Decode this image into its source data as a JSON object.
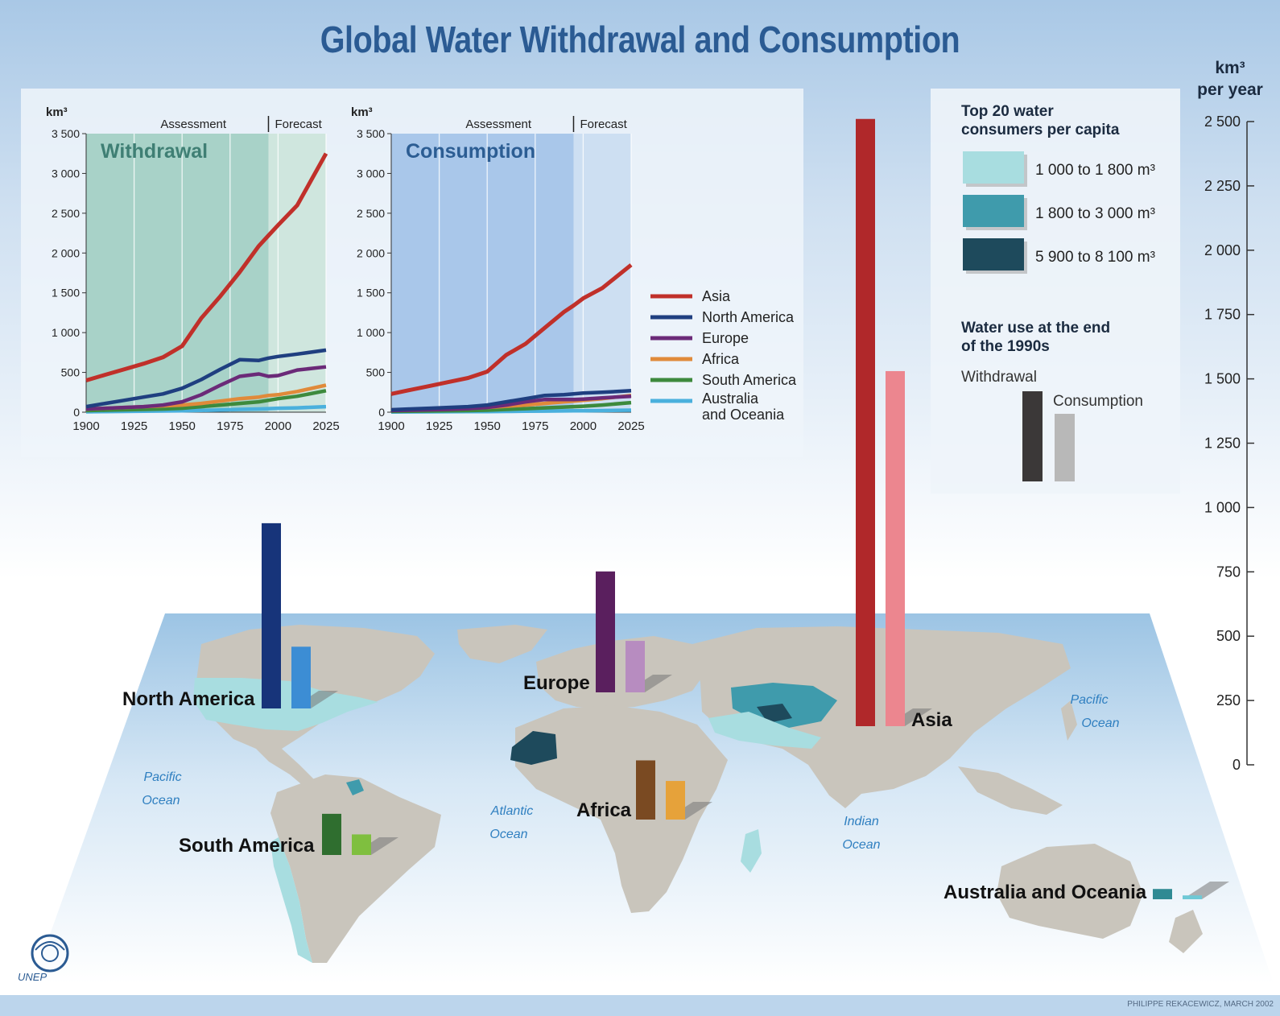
{
  "title": "Global Water Withdrawal and Consumption",
  "credit": "PHILIPPE REKACEWICZ, MARCH 2002",
  "logo_text": "UNEP",
  "colors": {
    "asia": "#c0302a",
    "north_america": "#1f3f80",
    "europe": "#6b2a78",
    "africa": "#e08a3a",
    "south_america": "#3d8a3d",
    "australia": "#4ab0dd",
    "land": "#c9c5bc",
    "tint_1": "#a8dde0",
    "tint_2": "#3f9bac",
    "tint_3": "#1e4a5c"
  },
  "line_charts": {
    "unit": "km³",
    "assessment_label": "Assessment",
    "forecast_label": "Forecast",
    "legend": [
      "Asia",
      "North America",
      "Europe",
      "Africa",
      "South America",
      "Australia and Oceania"
    ]
  },
  "chart_data": [
    {
      "type": "line",
      "title": "Withdrawal",
      "ylabel": "km³",
      "x": [
        1900,
        1910,
        1920,
        1930,
        1940,
        1950,
        1960,
        1970,
        1980,
        1990,
        1995,
        2000,
        2010,
        2025
      ],
      "ylim": [
        0,
        3500
      ],
      "xlim": [
        1900,
        2025
      ],
      "yticks": [
        "0",
        "500",
        "1 000",
        "1 500",
        "2 000",
        "2 500",
        "3 000",
        "3 500"
      ],
      "xticks": [
        "1900",
        "1925",
        "1950",
        "1975",
        "2000",
        "2025"
      ],
      "assessment_until": 1995,
      "series": [
        {
          "name": "Asia",
          "values": [
            400,
            470,
            540,
            610,
            690,
            830,
            1180,
            1460,
            1760,
            2090,
            2220,
            2350,
            2600,
            3250
          ]
        },
        {
          "name": "North America",
          "values": [
            70,
            110,
            150,
            190,
            230,
            300,
            410,
            540,
            660,
            650,
            680,
            700,
            730,
            780
          ]
        },
        {
          "name": "Europe",
          "values": [
            40,
            50,
            60,
            70,
            90,
            130,
            220,
            340,
            450,
            480,
            450,
            460,
            530,
            570
          ]
        },
        {
          "name": "Africa",
          "values": [
            40,
            50,
            60,
            70,
            80,
            90,
            110,
            140,
            170,
            190,
            210,
            220,
            260,
            340
          ]
        },
        {
          "name": "South America",
          "values": [
            20,
            25,
            30,
            35,
            40,
            50,
            70,
            90,
            110,
            130,
            150,
            170,
            200,
            270
          ]
        },
        {
          "name": "Australia and Oceania",
          "values": [
            5,
            8,
            10,
            12,
            15,
            18,
            22,
            28,
            35,
            40,
            45,
            50,
            55,
            70
          ]
        }
      ]
    },
    {
      "type": "line",
      "title": "Consumption",
      "ylabel": "km³",
      "x": [
        1900,
        1910,
        1920,
        1930,
        1940,
        1950,
        1960,
        1970,
        1980,
        1990,
        1995,
        2000,
        2010,
        2025
      ],
      "ylim": [
        0,
        3500
      ],
      "xlim": [
        1900,
        2025
      ],
      "yticks": [
        "0",
        "500",
        "1 000",
        "1 500",
        "2 000",
        "2 500",
        "3 000",
        "3 500"
      ],
      "xticks": [
        "1900",
        "1925",
        "1950",
        "1975",
        "2000",
        "2025"
      ],
      "assessment_until": 1995,
      "series": [
        {
          "name": "Asia",
          "values": [
            230,
            280,
            330,
            380,
            430,
            510,
            720,
            860,
            1060,
            1260,
            1340,
            1430,
            1560,
            1850
          ]
        },
        {
          "name": "North America",
          "values": [
            30,
            40,
            50,
            60,
            70,
            90,
            130,
            170,
            210,
            220,
            230,
            240,
            250,
            270
          ]
        },
        {
          "name": "Europe",
          "values": [
            20,
            25,
            30,
            35,
            45,
            60,
            90,
            130,
            160,
            160,
            160,
            165,
            180,
            200
          ]
        },
        {
          "name": "Africa",
          "values": [
            30,
            35,
            40,
            45,
            50,
            60,
            75,
            90,
            110,
            130,
            140,
            150,
            170,
            210
          ]
        },
        {
          "name": "South America",
          "values": [
            10,
            12,
            15,
            18,
            20,
            25,
            35,
            45,
            55,
            65,
            70,
            75,
            90,
            120
          ]
        },
        {
          "name": "Australia and Oceania",
          "values": [
            3,
            4,
            5,
            6,
            7,
            8,
            10,
            12,
            14,
            16,
            17,
            18,
            20,
            25
          ]
        }
      ]
    },
    {
      "type": "bar",
      "title": "Water use at the end of the 1990s",
      "ylabel": "km³ per year",
      "ylim": [
        0,
        2500
      ],
      "yticks": [
        "0",
        "250",
        "500",
        "750",
        "1 000",
        "1 250",
        "1 500",
        "1 750",
        "2 000",
        "2 250",
        "2 500"
      ],
      "categories": [
        "North America",
        "Europe",
        "Africa",
        "South America",
        "Asia",
        "Australia and Oceania"
      ],
      "series": [
        {
          "name": "Withdrawal",
          "values": [
            720,
            470,
            230,
            160,
            2360,
            40
          ]
        },
        {
          "name": "Consumption",
          "values": [
            240,
            200,
            150,
            80,
            1380,
            15
          ]
        }
      ]
    }
  ],
  "legend_box": {
    "title": "Top 20 water consumers per capita",
    "items": [
      "1 000 to 1 800 m³",
      "1 800 to 3 000 m³",
      "5 900 to 8 100 m³"
    ],
    "water_use_title": "Water use at the end of the 1990s",
    "withdrawal_label": "Withdrawal",
    "consumption_label": "Consumption"
  },
  "big_axis": {
    "unit_line1": "km³",
    "unit_line2": "per year"
  },
  "map_labels": {
    "regions": [
      "North America",
      "Europe",
      "Africa",
      "South America",
      "Asia",
      "Australia and Oceania"
    ],
    "oceans": [
      "Pacific Ocean",
      "Atlantic Ocean",
      "Indian Ocean",
      "Pacific Ocean"
    ]
  }
}
